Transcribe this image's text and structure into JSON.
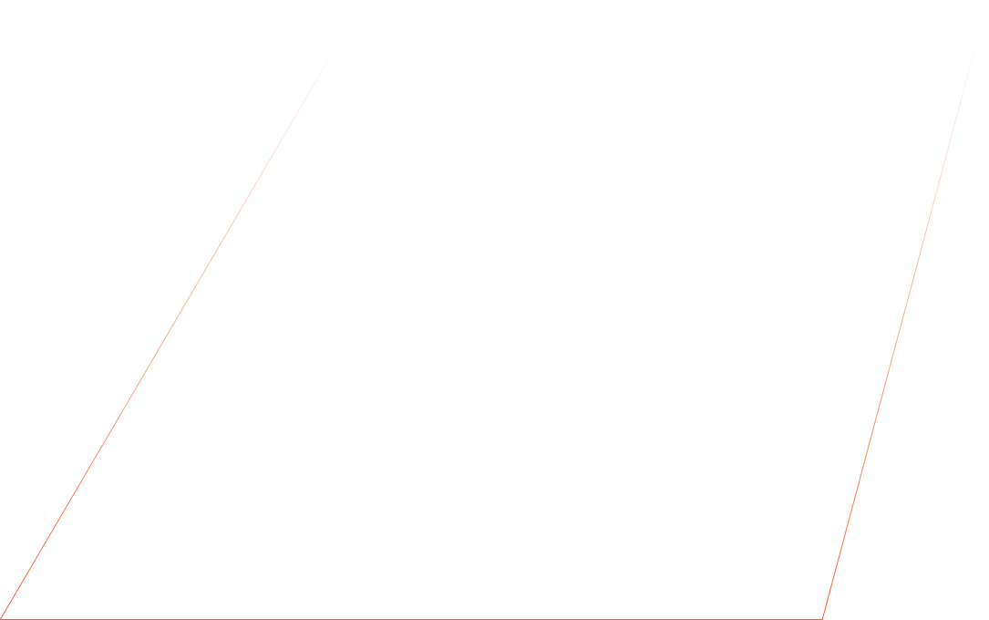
{
  "decoration": {
    "stroke_color": "#ff5a1f"
  }
}
